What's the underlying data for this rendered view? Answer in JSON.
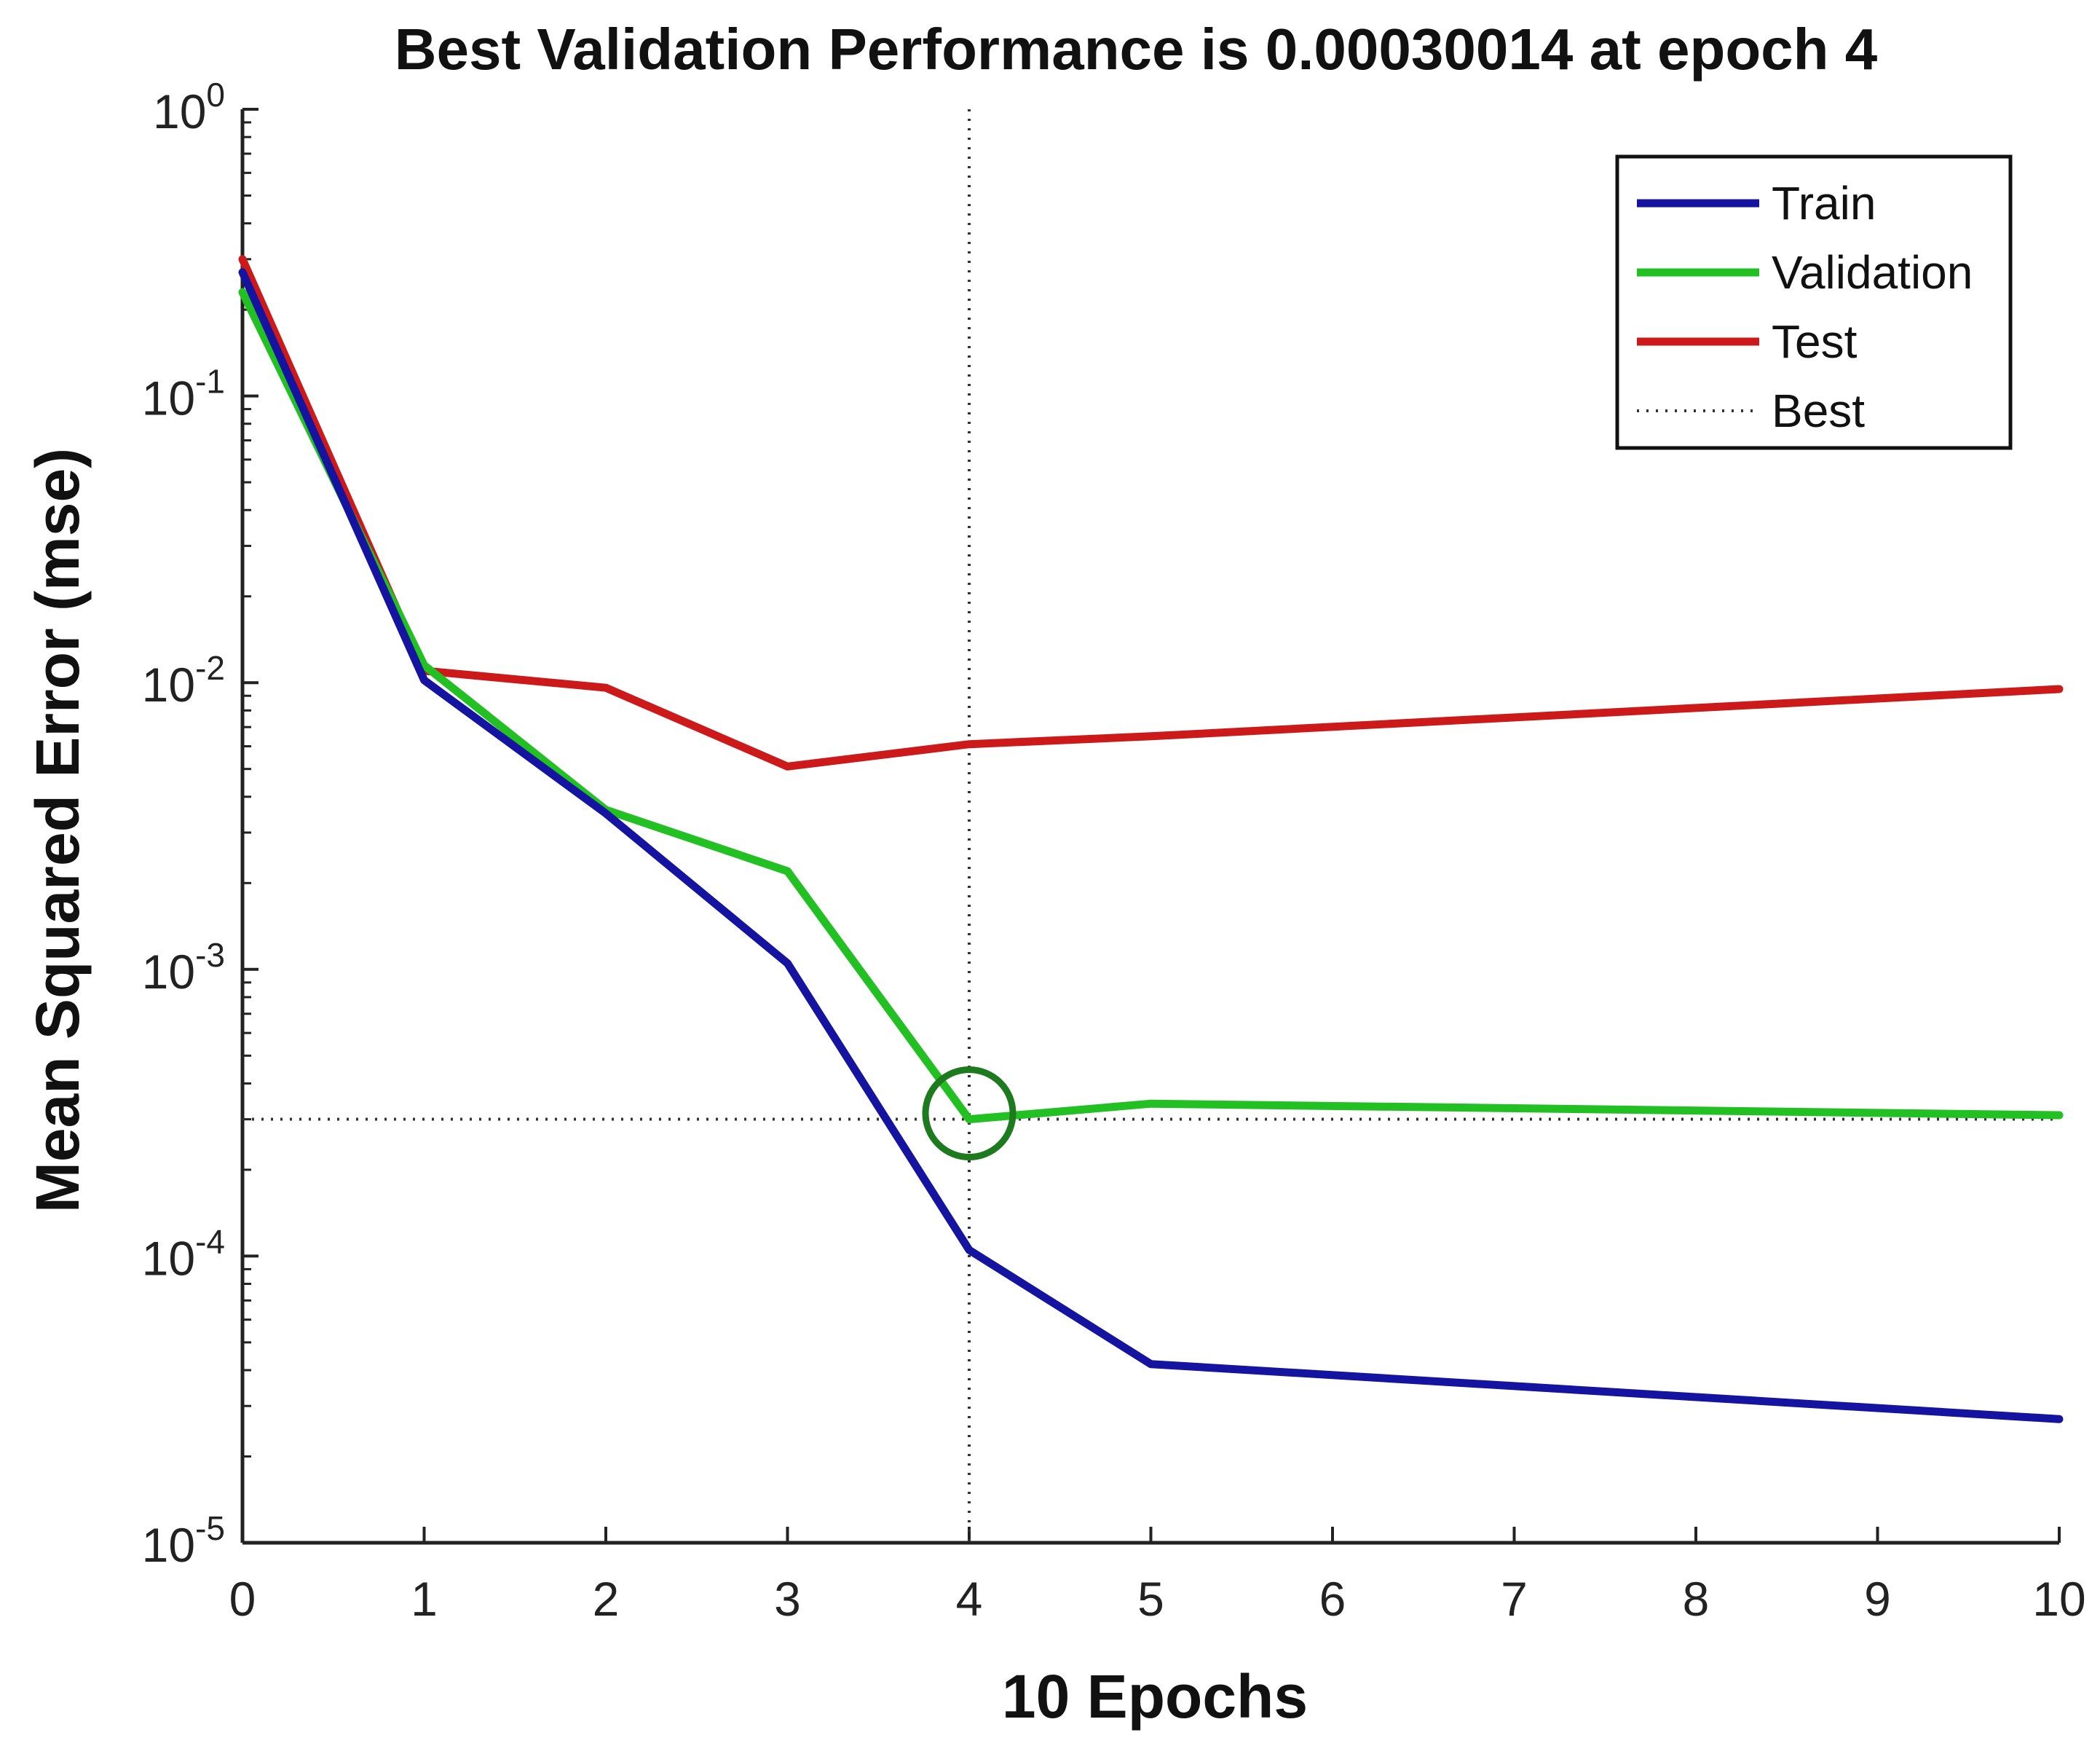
{
  "chart_data": {
    "type": "line",
    "title": "Best Validation Performance is 0.00030014 at epoch 4",
    "xlabel": "10 Epochs",
    "ylabel": "Mean Squared Error  (mse)",
    "yscale": "log",
    "xlim": [
      0,
      10
    ],
    "ylim": [
      1e-05,
      1
    ],
    "x_ticks": [
      "0",
      "1",
      "2",
      "3",
      "4",
      "5",
      "6",
      "7",
      "8",
      "9",
      "10"
    ],
    "y_ticks": [
      {
        "value": 1,
        "base": "10",
        "exp": "0"
      },
      {
        "value": 0.1,
        "base": "10",
        "exp": "-1"
      },
      {
        "value": 0.01,
        "base": "10",
        "exp": "-2"
      },
      {
        "value": 0.001,
        "base": "10",
        "exp": "-3"
      },
      {
        "value": 0.0001,
        "base": "10",
        "exp": "-4"
      },
      {
        "value": 1e-05,
        "base": "10",
        "exp": "-5"
      }
    ],
    "x": [
      0,
      1,
      2,
      3,
      4,
      5,
      10
    ],
    "series": [
      {
        "name": "Train",
        "color": "#1414a0",
        "values": [
          0.27,
          0.0102,
          0.0035,
          0.00105,
          0.000105,
          4.2e-05,
          2.7e-05
        ]
      },
      {
        "name": "Validation",
        "color": "#22c022",
        "values": [
          0.23,
          0.0115,
          0.0036,
          0.0022,
          0.0003,
          0.00034,
          0.00031
        ]
      },
      {
        "name": "Test",
        "color": "#cc1a1a",
        "values": [
          0.3,
          0.011,
          0.0096,
          0.0051,
          0.0061,
          0.0065,
          0.0095
        ]
      }
    ],
    "best": {
      "epoch": 4,
      "value": 0.00030014,
      "label": "Best",
      "marker_color": "#1e7a1e"
    },
    "legend": {
      "position": "top-right",
      "entries": [
        {
          "label": "Train",
          "color": "#1414a0",
          "style": "solid"
        },
        {
          "label": "Validation",
          "color": "#22c022",
          "style": "solid"
        },
        {
          "label": "Test",
          "color": "#cc1a1a",
          "style": "solid"
        },
        {
          "label": "Best",
          "color": "#333333",
          "style": "dotted"
        }
      ]
    }
  }
}
